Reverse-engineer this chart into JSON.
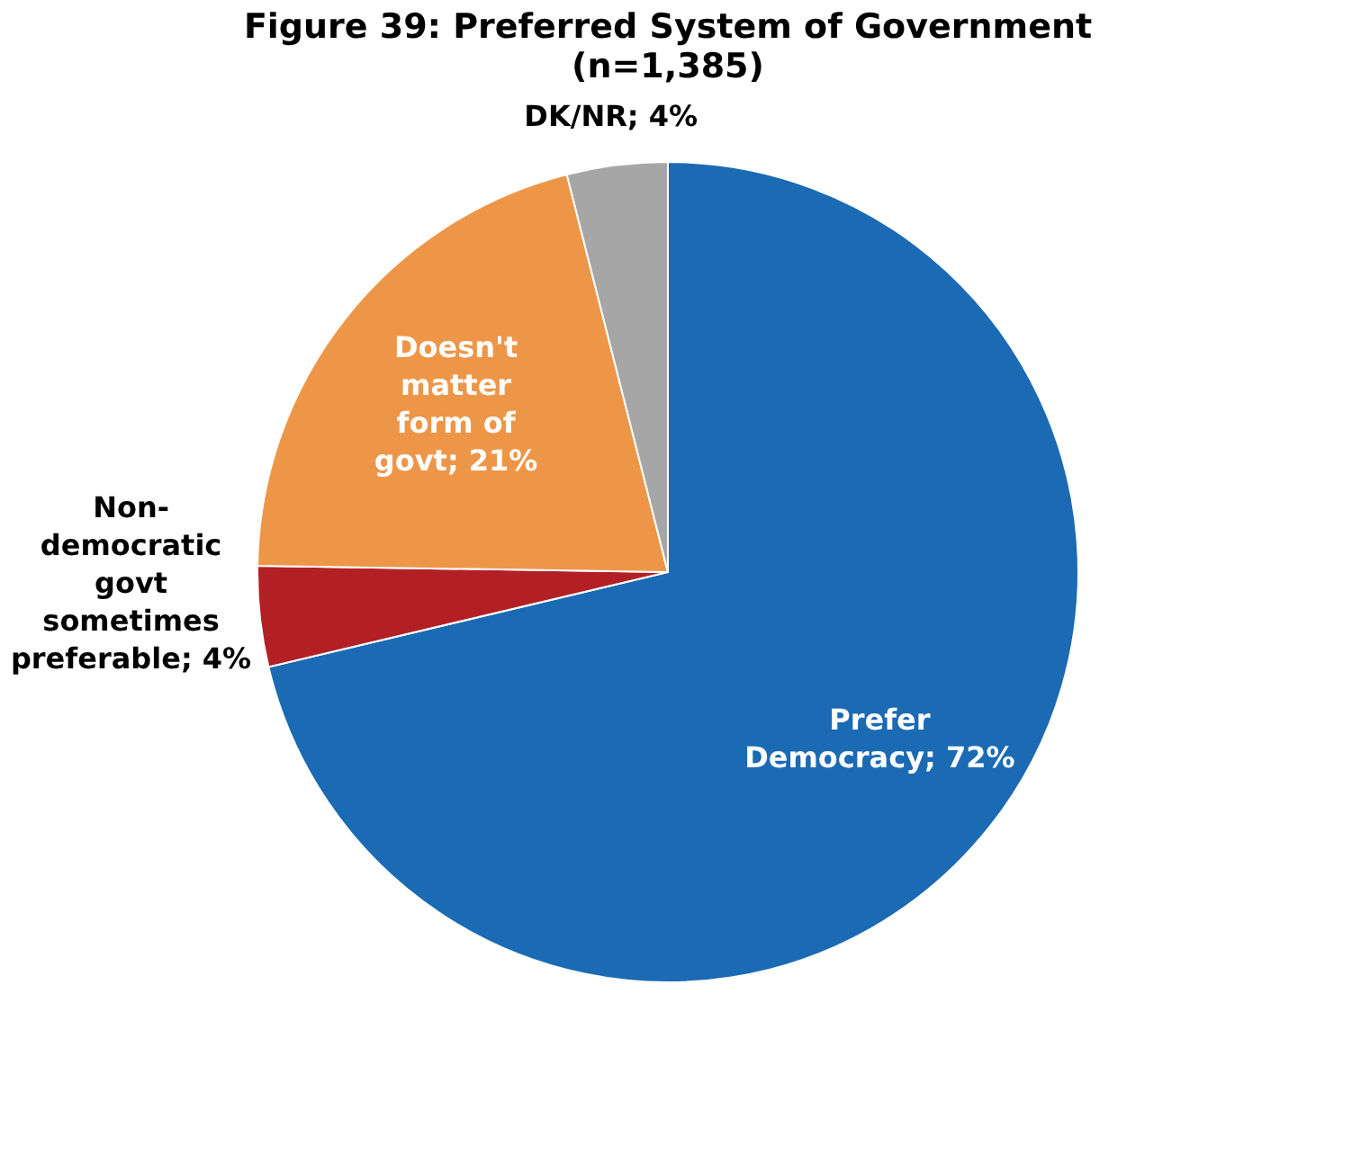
{
  "chart_data": {
    "type": "pie",
    "title": "Figure 39: Preferred System of Government",
    "subtitle": "(n=1,385)",
    "categories": [
      "Prefer Democracy",
      "Non-democratic govt sometimes preferable",
      "Doesn't matter form of govt",
      "DK/NR"
    ],
    "values": [
      72,
      4,
      21,
      4
    ],
    "colors": [
      "#1b6ab4",
      "#b22025",
      "#ee9648",
      "#a6a6a6"
    ],
    "value_labels": [
      "72%",
      "4%",
      "21%",
      "4%"
    ]
  }
}
